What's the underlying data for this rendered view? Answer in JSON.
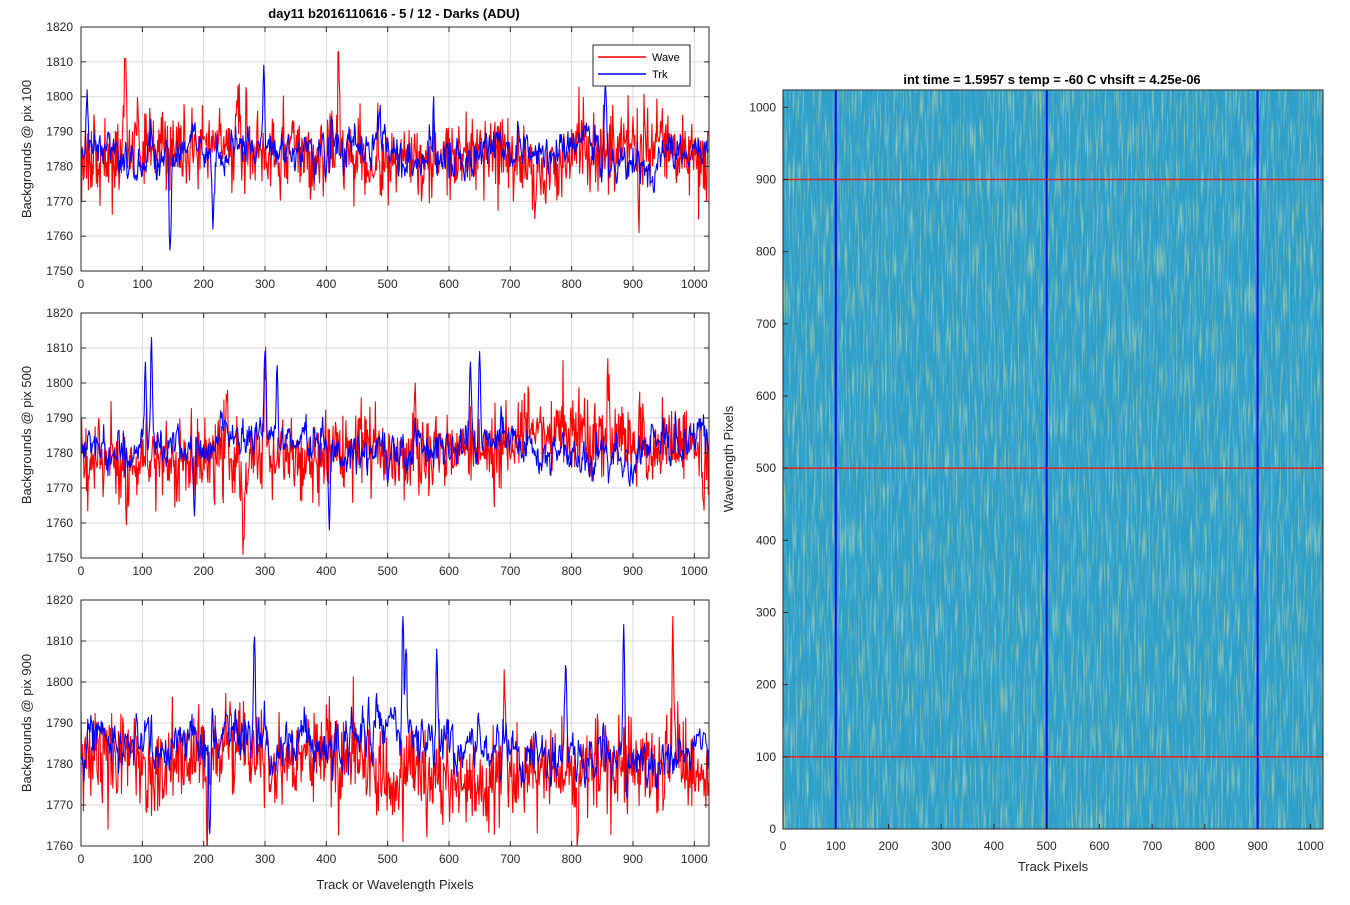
{
  "chart_data": [
    {
      "type": "line",
      "title": "day11 b2016110616 - 5 / 12 - Darks (ADU)",
      "xlabel": "",
      "ylabel": "Backgrounds @ pix 100",
      "xlim": [
        0,
        1024
      ],
      "ylim": [
        1750,
        1820
      ],
      "x_ticks": [
        "0",
        "100",
        "200",
        "300",
        "400",
        "500",
        "600",
        "700",
        "800",
        "900",
        "1000"
      ],
      "y_ticks": [
        "1750",
        "1760",
        "1770",
        "1780",
        "1790",
        "1800",
        "1810",
        "1820"
      ],
      "grid": true,
      "legend_position": "top-right",
      "n_points": 1024,
      "series": [
        {
          "name": "Wave",
          "color": "#ff0000",
          "mean": 1783,
          "std": 5.5,
          "smooth": 0.0,
          "seed": 11,
          "features": [
            [
              72,
              1811
            ],
            [
              255,
              1797
            ],
            [
              420,
              1813
            ],
            [
              455,
              1798
            ],
            [
              740,
              1765
            ],
            [
              910,
              1761
            ],
            [
              1020,
              1770
            ]
          ]
        },
        {
          "name": "Trk",
          "color": "#0000ff",
          "mean": 1782,
          "std": 4.5,
          "smooth": 0.6,
          "seed": 23,
          "features": [
            [
              10,
              1802
            ],
            [
              145,
              1756
            ],
            [
              215,
              1762
            ],
            [
              298,
              1809
            ],
            [
              575,
              1800
            ],
            [
              855,
              1804
            ],
            [
              870,
              1780
            ]
          ]
        }
      ]
    },
    {
      "type": "line",
      "title": "",
      "xlabel": "",
      "ylabel": "Backgrounds @ pix 500",
      "xlim": [
        0,
        1024
      ],
      "ylim": [
        1750,
        1820
      ],
      "x_ticks": [
        "0",
        "100",
        "200",
        "300",
        "400",
        "500",
        "600",
        "700",
        "800",
        "900",
        "1000"
      ],
      "y_ticks": [
        "1750",
        "1760",
        "1770",
        "1780",
        "1790",
        "1800",
        "1810",
        "1820"
      ],
      "grid": true,
      "n_points": 1024,
      "series": [
        {
          "name": "Wave",
          "color": "#ff0000",
          "mean": 1780,
          "std": 5.5,
          "smooth": 0.0,
          "seed": 37,
          "features": [
            [
              75,
              1766
            ],
            [
              238,
              1795
            ],
            [
              265,
              1756
            ],
            [
              300,
              1801
            ],
            [
              545,
              1800
            ],
            [
              860,
              1795
            ],
            [
              1015,
              1766
            ]
          ]
        },
        {
          "name": "Trk",
          "color": "#0000ff",
          "mean": 1783,
          "std": 4.5,
          "smooth": 0.6,
          "seed": 41,
          "features": [
            [
              115,
              1813
            ],
            [
              105,
              1806
            ],
            [
              185,
              1762
            ],
            [
              300,
              1809
            ],
            [
              320,
              1805
            ],
            [
              405,
              1758
            ],
            [
              635,
              1806
            ],
            [
              650,
              1809
            ],
            [
              975,
              1780
            ]
          ]
        }
      ]
    },
    {
      "type": "line",
      "title": "",
      "xlabel": "Track or Wavelength Pixels",
      "ylabel": "Backgrounds @ pix 900",
      "xlim": [
        0,
        1024
      ],
      "ylim": [
        1760,
        1820
      ],
      "x_ticks": [
        "0",
        "100",
        "200",
        "300",
        "400",
        "500",
        "600",
        "700",
        "800",
        "900",
        "1000"
      ],
      "y_ticks": [
        "1760",
        "1770",
        "1780",
        "1790",
        "1800",
        "1810",
        "1820"
      ],
      "grid": true,
      "n_points": 1024,
      "series": [
        {
          "name": "Wave",
          "color": "#ff0000",
          "mean": 1780,
          "std": 5.5,
          "smooth": 0.0,
          "seed": 53,
          "features": [
            [
              965,
              1816
            ],
            [
              205,
              1762
            ],
            [
              690,
              1803
            ],
            [
              810,
              1762
            ],
            [
              990,
              1770
            ]
          ]
        },
        {
          "name": "Trk",
          "color": "#0000ff",
          "mean": 1785,
          "std": 4.5,
          "smooth": 0.6,
          "seed": 67,
          "features": [
            [
              283,
              1811
            ],
            [
              525,
              1816
            ],
            [
              530,
              1808
            ],
            [
              885,
              1814
            ],
            [
              210,
              1763
            ],
            [
              580,
              1808
            ],
            [
              790,
              1804
            ]
          ]
        }
      ]
    },
    {
      "type": "heatmap",
      "title": "int time = 1.5957 s    temp = -60 C    vhsift = 4.25e-06",
      "xlabel": "Track Pixels",
      "ylabel": "Wavelength Pixels",
      "xlim": [
        0,
        1024
      ],
      "ylim": [
        0,
        1024
      ],
      "x_ticks": [
        "0",
        "100",
        "200",
        "300",
        "400",
        "500",
        "600",
        "700",
        "800",
        "900",
        "1000"
      ],
      "y_ticks": [
        "0",
        "100",
        "200",
        "300",
        "400",
        "500",
        "600",
        "700",
        "800",
        "900",
        "1000"
      ],
      "colormap": "parula",
      "base_color": "#2d9fc8",
      "vertical_lines": {
        "color": "#0000ff",
        "x": [
          100,
          500,
          900
        ]
      },
      "horizontal_lines": {
        "color": "#e0201a",
        "y": [
          100,
          500,
          900
        ]
      }
    }
  ]
}
